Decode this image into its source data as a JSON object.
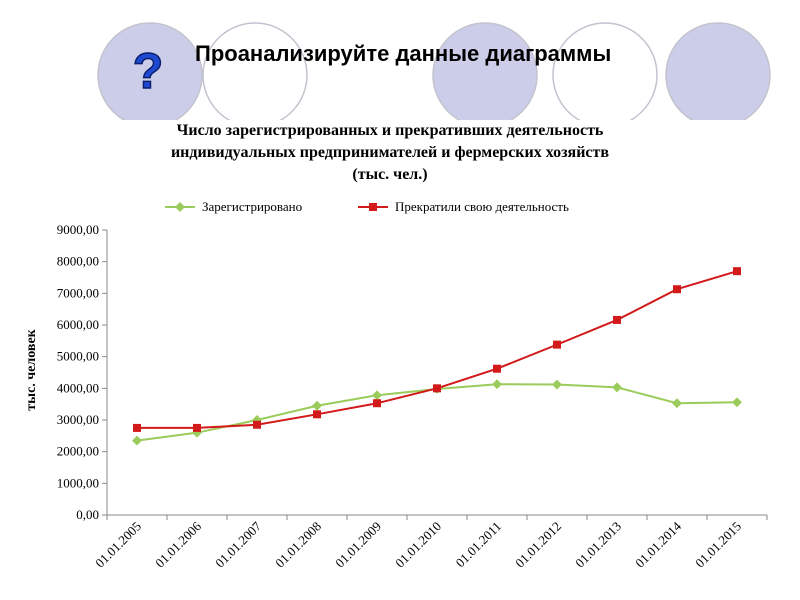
{
  "slide": {
    "title": "Проанализируйте данные диаграммы",
    "question_mark": "?",
    "colors": {
      "circle_fill": "#cccde8",
      "circle_outline": "#c3c3cf",
      "question_fill": "#1f49d1"
    }
  },
  "chart_data": {
    "type": "line",
    "title_lines": [
      "Число зарегистрированных  и прекративших деятельность",
      "индивидуальных предпринимателей и фермерских хозяйств",
      "(тыс. чел.)"
    ],
    "xlabel": "",
    "ylabel": "тыс. человек",
    "categories": [
      "01.01.2005",
      "01.01.2006",
      "01.01.2007",
      "01.01.2008",
      "01.01.2009",
      "01.01.2010",
      "01.01.2011",
      "01.01.2012",
      "01.01.2013",
      "01.01.2014",
      "01.01.2015"
    ],
    "yticks": [
      "0,00",
      "1000,00",
      "2000,00",
      "3000,00",
      "4000,00",
      "5000,00",
      "6000,00",
      "7000,00",
      "8000,00",
      "9000,00"
    ],
    "ylim": [
      0,
      9000
    ],
    "grid": false,
    "legend_position": "top",
    "series": [
      {
        "name": "Зарегистрировано",
        "color": "#9bcb5b",
        "marker": "diamond",
        "values": [
          2350,
          2600,
          3000,
          3450,
          3780,
          3980,
          4130,
          4120,
          4030,
          3530,
          3560
        ]
      },
      {
        "name": "Прекратили свою деятельность",
        "color": "#d21a1a",
        "marker": "square",
        "values": [
          2750,
          2750,
          2850,
          3180,
          3530,
          4000,
          4620,
          5380,
          6160,
          7130,
          7700
        ]
      }
    ]
  }
}
